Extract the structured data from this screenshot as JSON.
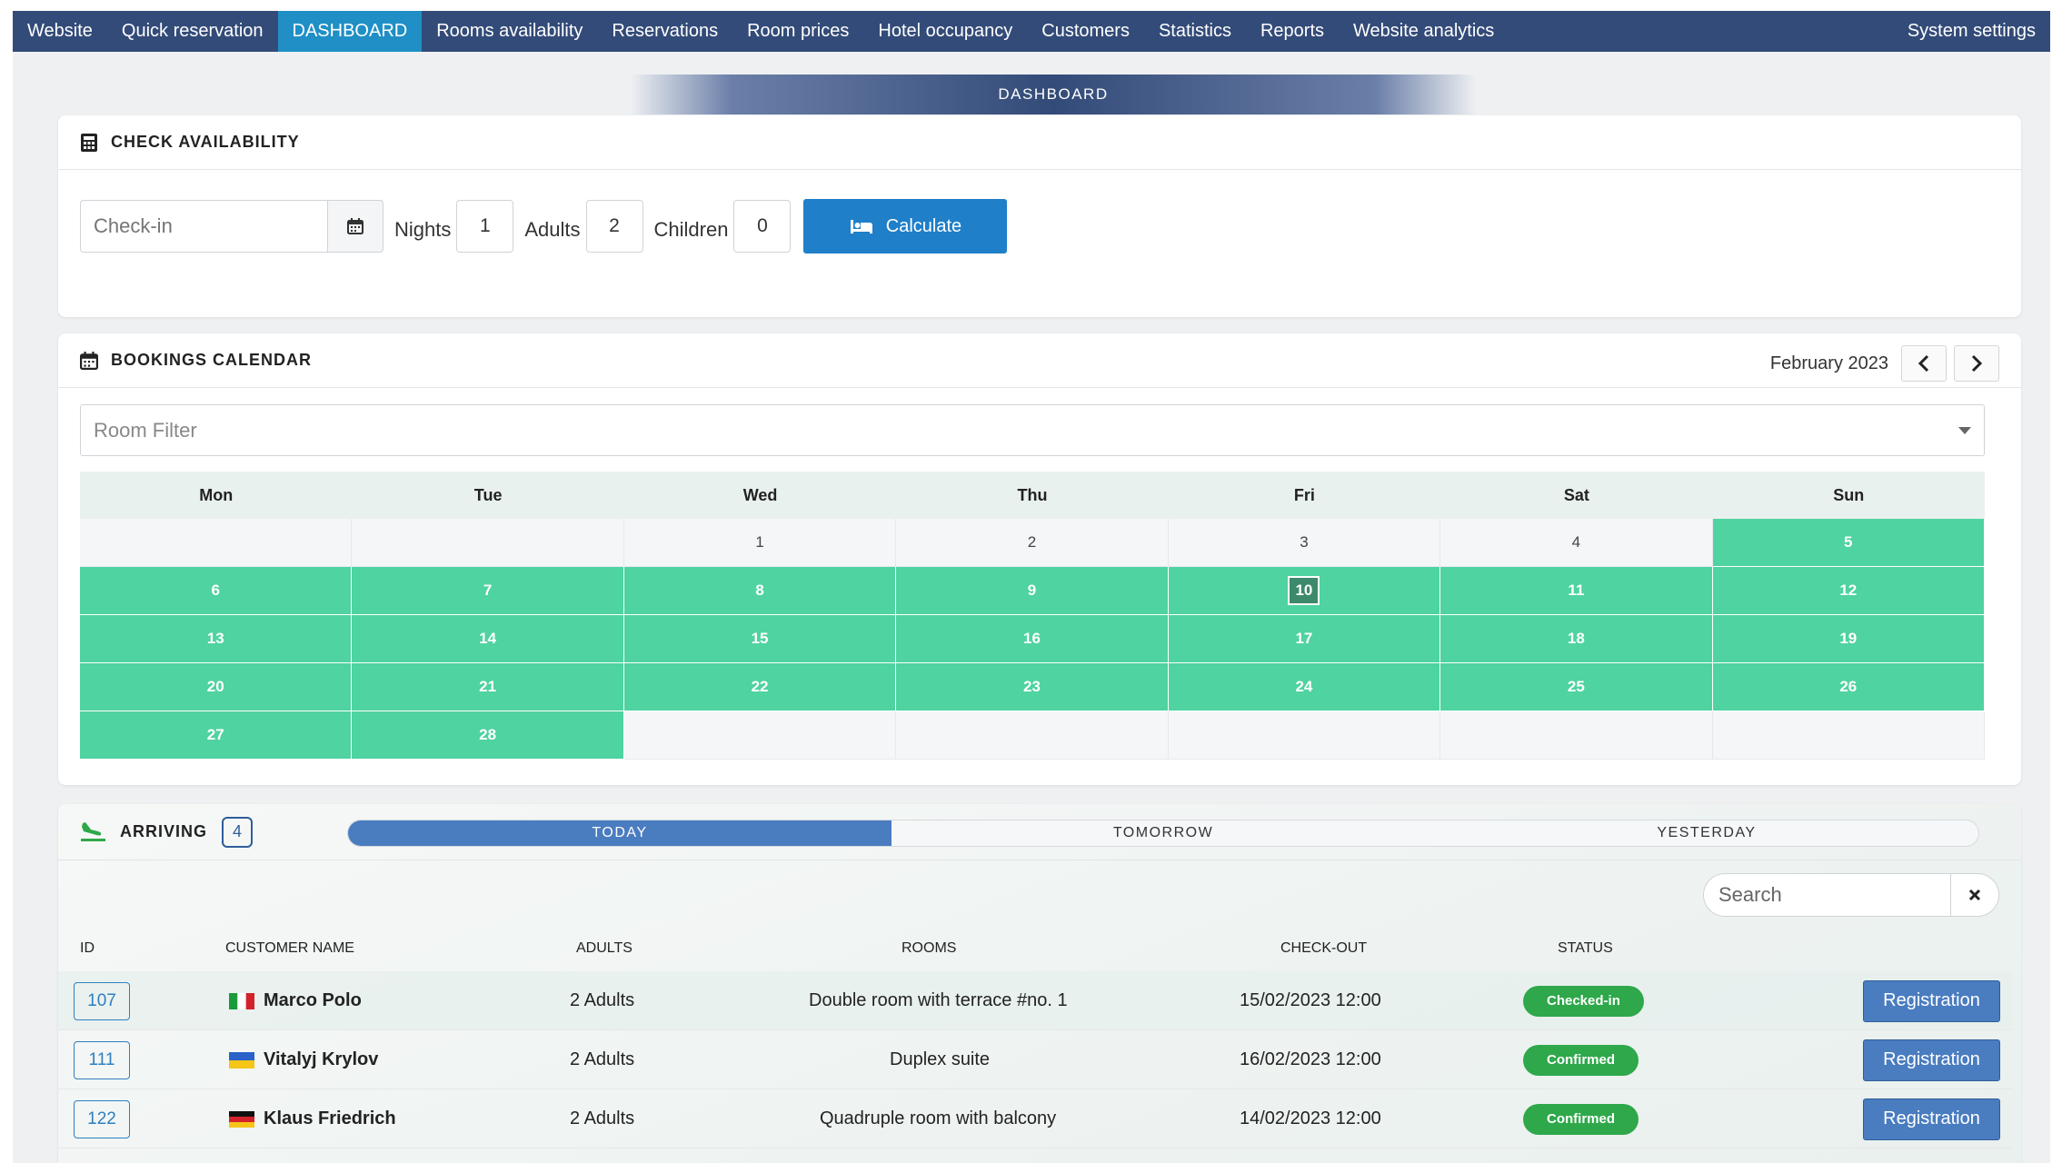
{
  "nav": {
    "items": [
      {
        "label": "Website"
      },
      {
        "label": "Quick reservation"
      },
      {
        "label": "DASHBOARD",
        "active": true
      },
      {
        "label": "Rooms availability"
      },
      {
        "label": "Reservations"
      },
      {
        "label": "Room prices"
      },
      {
        "label": "Hotel occupancy"
      },
      {
        "label": "Customers"
      },
      {
        "label": "Statistics"
      },
      {
        "label": "Reports"
      },
      {
        "label": "Website analytics"
      }
    ],
    "right": "System settings",
    "active_color": "#1f8fc6",
    "bar_color": "#334b78"
  },
  "section_title": "DASHBOARD",
  "availability": {
    "title": "CHECK AVAILABILITY",
    "checkin_placeholder": "Check-in",
    "nights_label": "Nights",
    "nights": "1",
    "adults_label": "Adults",
    "adults": "2",
    "children_label": "Children",
    "children": "0",
    "calculate": "Calculate"
  },
  "calendar": {
    "title": "BOOKINGS CALENDAR",
    "month": "February 2023",
    "room_filter_placeholder": "Room Filter",
    "weekdays": [
      "Mon",
      "Tue",
      "Wed",
      "Thu",
      "Fri",
      "Sat",
      "Sun"
    ],
    "weeks": [
      [
        {
          "d": ""
        },
        {
          "d": ""
        },
        {
          "d": "1",
          "s": "past"
        },
        {
          "d": "2",
          "s": "past"
        },
        {
          "d": "3",
          "s": "past"
        },
        {
          "d": "4",
          "s": "past"
        },
        {
          "d": "5",
          "s": "avail"
        }
      ],
      [
        {
          "d": "6",
          "s": "avail"
        },
        {
          "d": "7",
          "s": "avail"
        },
        {
          "d": "8",
          "s": "avail"
        },
        {
          "d": "9",
          "s": "avail"
        },
        {
          "d": "10",
          "s": "today"
        },
        {
          "d": "11",
          "s": "avail"
        },
        {
          "d": "12",
          "s": "avail"
        }
      ],
      [
        {
          "d": "13",
          "s": "avail"
        },
        {
          "d": "14",
          "s": "avail"
        },
        {
          "d": "15",
          "s": "avail"
        },
        {
          "d": "16",
          "s": "avail"
        },
        {
          "d": "17",
          "s": "avail"
        },
        {
          "d": "18",
          "s": "avail"
        },
        {
          "d": "19",
          "s": "avail"
        }
      ],
      [
        {
          "d": "20",
          "s": "avail"
        },
        {
          "d": "21",
          "s": "avail"
        },
        {
          "d": "22",
          "s": "avail"
        },
        {
          "d": "23",
          "s": "avail"
        },
        {
          "d": "24",
          "s": "avail"
        },
        {
          "d": "25",
          "s": "avail"
        },
        {
          "d": "26",
          "s": "avail"
        }
      ],
      [
        {
          "d": "27",
          "s": "avail"
        },
        {
          "d": "28",
          "s": "avail"
        },
        {
          "d": ""
        },
        {
          "d": ""
        },
        {
          "d": ""
        },
        {
          "d": ""
        },
        {
          "d": ""
        }
      ]
    ],
    "available_color": "#4fd3a0"
  },
  "arriving": {
    "title": "ARRIVING",
    "count": "4",
    "tabs": [
      {
        "label": "TODAY",
        "active": true
      },
      {
        "label": "TOMORROW"
      },
      {
        "label": "YESTERDAY"
      }
    ],
    "search_placeholder": "Search",
    "columns": {
      "id": "ID",
      "customer": "CUSTOMER NAME",
      "adults": "ADULTS",
      "rooms": "ROOMS",
      "checkout": "CHECK-OUT",
      "status": "STATUS"
    },
    "rows": [
      {
        "id": "107",
        "flag": "italy-flag-icon",
        "name": "Marco Polo",
        "adults": "2 Adults",
        "room": "Double room with terrace #no. 1",
        "checkout": "15/02/2023 12:00",
        "status": "Checked-in",
        "action": "Registration"
      },
      {
        "id": "111",
        "flag": "ukraine-flag-icon",
        "name": "Vitalyj Krylov",
        "adults": "2 Adults",
        "room": "Duplex suite",
        "checkout": "16/02/2023 12:00",
        "status": "Confirmed",
        "action": "Registration"
      },
      {
        "id": "122",
        "flag": "germany-flag-icon",
        "name": "Klaus Friedrich",
        "adults": "2 Adults",
        "room": "Quadruple room with balcony",
        "checkout": "14/02/2023 12:00",
        "status": "Confirmed",
        "action": "Registration"
      }
    ],
    "status_color": "#2ea84a",
    "button_color": "#4a7cc0"
  }
}
